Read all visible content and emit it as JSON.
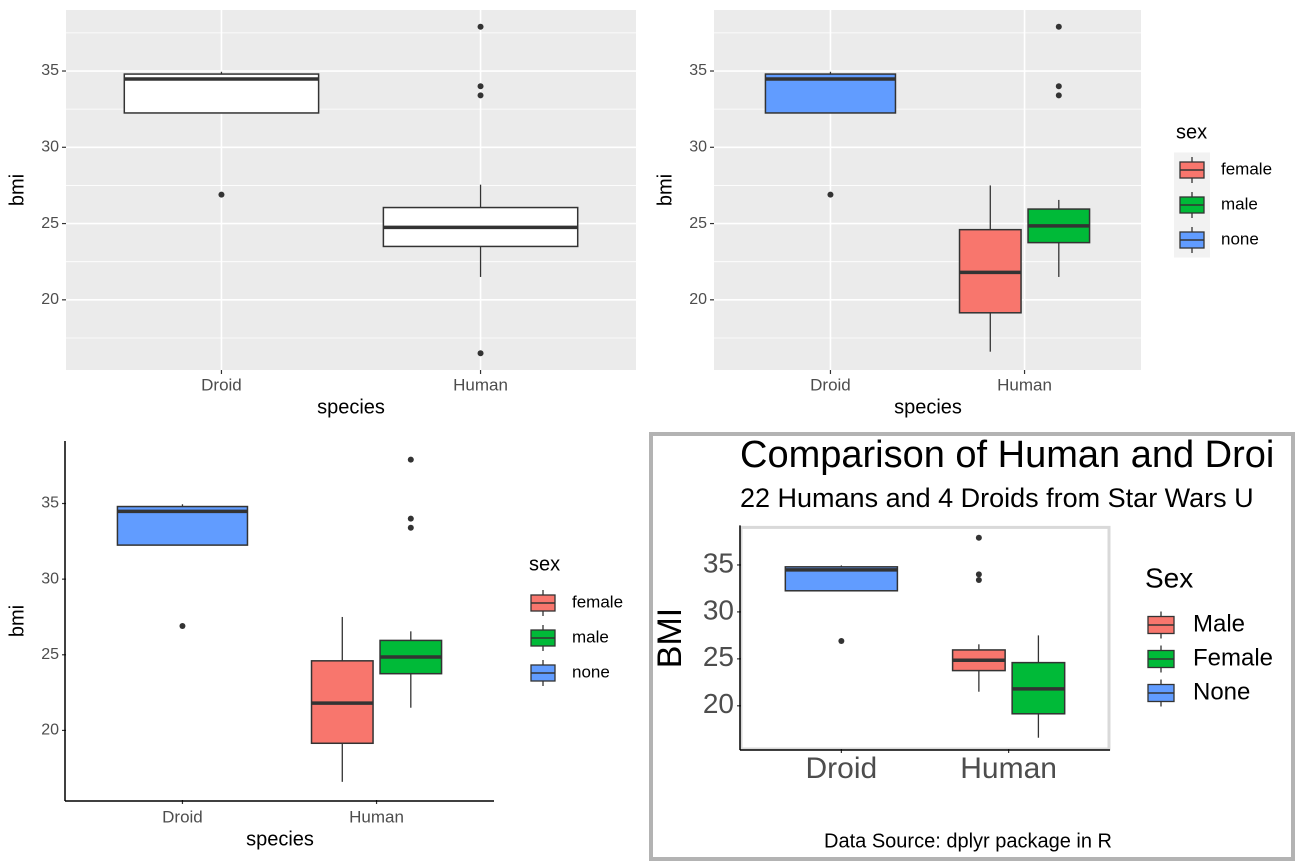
{
  "chart_data": [
    {
      "type": "box",
      "xlabel": "species",
      "ylabel": "bmi",
      "categories": [
        "Droid",
        "Human"
      ],
      "ylim": [
        15.4,
        39.0
      ],
      "yticks": [
        20,
        25,
        30,
        35
      ],
      "grid": true,
      "series": [
        {
          "color": "#ffffff",
          "boxes": [
            {
              "low": 32.25,
              "q1": 32.25,
              "median": 34.48,
              "q3": 34.8,
              "high": 34.95,
              "outliers": [
                26.9
              ]
            },
            {
              "low": 21.5,
              "q1": 23.5,
              "median": 24.75,
              "q3": 26.05,
              "high": 27.55,
              "outliers": [
                37.9,
                34.0,
                33.4,
                16.5
              ]
            }
          ]
        }
      ]
    },
    {
      "type": "box",
      "xlabel": "species",
      "ylabel": "bmi",
      "categories": [
        "Droid",
        "Human"
      ],
      "ylim": [
        15.4,
        39.0
      ],
      "yticks": [
        20,
        25,
        30,
        35
      ],
      "grid": true,
      "legend_title": "sex",
      "series": [
        {
          "name": "female",
          "color": "#f8766d",
          "boxes": [
            null,
            {
              "low": 16.6,
              "q1": 19.15,
              "median": 21.8,
              "q3": 24.6,
              "high": 27.5,
              "outliers": []
            }
          ]
        },
        {
          "name": "male",
          "color": "#00ba38",
          "boxes": [
            null,
            {
              "low": 21.5,
              "q1": 23.75,
              "median": 24.85,
              "q3": 25.95,
              "high": 26.55,
              "outliers": [
                37.9,
                34.0,
                33.4
              ]
            }
          ]
        },
        {
          "name": "none",
          "color": "#619cff",
          "boxes": [
            {
              "low": 32.25,
              "q1": 32.25,
              "median": 34.48,
              "q3": 34.8,
              "high": 34.95,
              "outliers": [
                26.9
              ]
            },
            null
          ]
        }
      ]
    },
    {
      "type": "box",
      "xlabel": "species",
      "ylabel": "bmi",
      "categories": [
        "Droid",
        "Human"
      ],
      "ylim": [
        15.4,
        39.0
      ],
      "yticks": [
        20,
        25,
        30,
        35
      ],
      "grid": false,
      "legend_title": "sex",
      "series": [
        {
          "name": "female",
          "color": "#f8766d",
          "boxes": [
            null,
            {
              "low": 16.6,
              "q1": 19.15,
              "median": 21.8,
              "q3": 24.6,
              "high": 27.5,
              "outliers": []
            }
          ]
        },
        {
          "name": "male",
          "color": "#00ba38",
          "boxes": [
            null,
            {
              "low": 21.5,
              "q1": 23.75,
              "median": 24.85,
              "q3": 25.95,
              "high": 26.55,
              "outliers": [
                37.9,
                34.0,
                33.4
              ]
            }
          ]
        },
        {
          "name": "none",
          "color": "#619cff",
          "boxes": [
            {
              "low": 32.25,
              "q1": 32.25,
              "median": 34.48,
              "q3": 34.8,
              "high": 34.95,
              "outliers": [
                26.9
              ]
            },
            null
          ]
        }
      ]
    },
    {
      "type": "box",
      "title": "Comparison of Human and Droi",
      "subtitle": "22 Humans and 4 Droids from Star Wars U",
      "ylabel": "BMI",
      "caption": "Data Source: dplyr package in R",
      "categories": [
        "Droid",
        "Human"
      ],
      "ylim": [
        15.4,
        39.0
      ],
      "yticks": [
        20,
        25,
        30,
        35
      ],
      "grid": false,
      "legend_title": "Sex",
      "series": [
        {
          "name": "Male",
          "color": "#f8766d",
          "boxes": [
            null,
            {
              "low": 21.5,
              "q1": 23.75,
              "median": 24.85,
              "q3": 25.95,
              "high": 26.55,
              "outliers": [
                37.9,
                34.0,
                33.4
              ]
            }
          ]
        },
        {
          "name": "Female",
          "color": "#00ba38",
          "boxes": [
            null,
            {
              "low": 16.6,
              "q1": 19.15,
              "median": 21.8,
              "q3": 24.6,
              "high": 27.5,
              "outliers": []
            }
          ]
        },
        {
          "name": "None",
          "color": "#619cff",
          "boxes": [
            {
              "low": 32.25,
              "q1": 32.25,
              "median": 34.48,
              "q3": 34.8,
              "high": 34.95,
              "outliers": [
                26.9
              ]
            },
            null
          ]
        }
      ]
    }
  ]
}
